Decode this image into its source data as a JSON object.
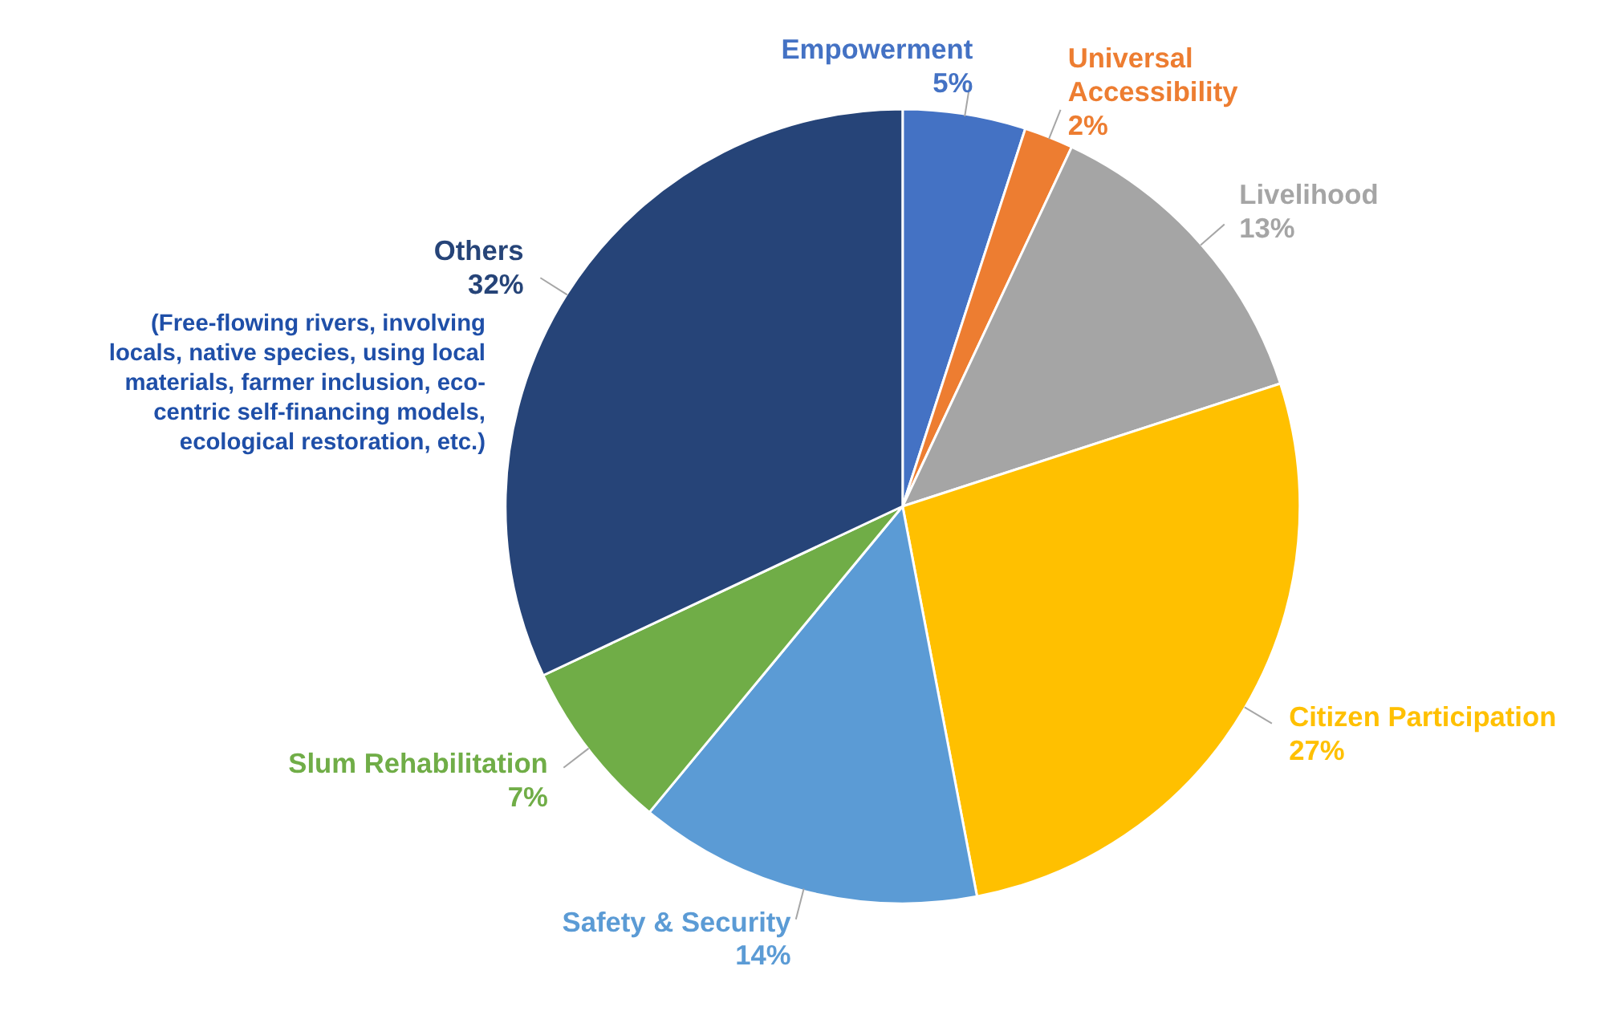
{
  "chart_data": {
    "type": "pie",
    "categories": [
      "Empowerment",
      "Universal Accessibility",
      "Livelihood",
      "Citizen Participation",
      "Safety & Security",
      "Slum Rehabilitation",
      "Others"
    ],
    "values": [
      5,
      2,
      13,
      27,
      14,
      7,
      32
    ],
    "colors": [
      "#4472c4",
      "#ed7d31",
      "#a5a5a5",
      "#ffc000",
      "#5b9bd5",
      "#70ad47",
      "#264478"
    ],
    "value_labels": [
      "5%",
      "2%",
      "13%",
      "27%",
      "14%",
      "7%",
      "32%"
    ],
    "annotations": [
      "(Free-flowing rivers, involving locals, native species, using local materials, farmer inclusion, eco-centric self-financing models, ecological restoration, etc.)"
    ]
  }
}
